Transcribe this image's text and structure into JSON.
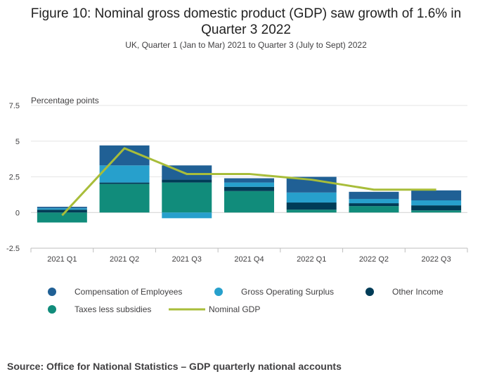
{
  "header": {
    "title_line1": "Figure 10: Nominal gross domestic product (GDP) saw growth of 1.6% in",
    "title_line2": "Quarter 3 2022",
    "subtitle": "UK, Quarter 1 (Jan to Mar) 2021 to Quarter 3 (July to Sept) 2022"
  },
  "source": "Source: Office for National Statistics – GDP quarterly national accounts",
  "chart_data": {
    "type": "bar",
    "stacked": true,
    "ylabel": "Percentage points",
    "ylim": [
      -2.5,
      7.5
    ],
    "yticks": [
      -2.5,
      0,
      2.5,
      5,
      7.5
    ],
    "ytick_labels": [
      "-2.5",
      "0",
      "2.5",
      "5",
      "7.5"
    ],
    "grid": true,
    "legend_position": "bottom",
    "categories": [
      "2021 Q1",
      "2021 Q2",
      "2021 Q3",
      "2021 Q4",
      "2022 Q1",
      "2022 Q2",
      "2022 Q3"
    ],
    "series": [
      {
        "name": "Compensation of Employees",
        "color": "#206095",
        "values": [
          0.1,
          1.4,
          1.0,
          0.3,
          1.1,
          0.5,
          0.7
        ]
      },
      {
        "name": "Gross Operating Surplus",
        "color": "#27a0cc",
        "values": [
          0.1,
          1.2,
          -0.4,
          0.3,
          0.7,
          0.3,
          0.35
        ]
      },
      {
        "name": "Other Income",
        "color": "#003c57",
        "values": [
          0.2,
          0.1,
          0.2,
          0.3,
          0.5,
          0.2,
          0.35
        ]
      },
      {
        "name": "Taxes less subsidies",
        "color": "#118c7b",
        "values": [
          -0.7,
          2.0,
          2.1,
          1.5,
          0.2,
          0.45,
          0.15
        ]
      }
    ],
    "line": {
      "name": "Nominal GDP",
      "color": "#a8bd3a",
      "values": [
        -0.2,
        4.5,
        2.7,
        2.7,
        2.3,
        1.6,
        1.6
      ]
    }
  }
}
